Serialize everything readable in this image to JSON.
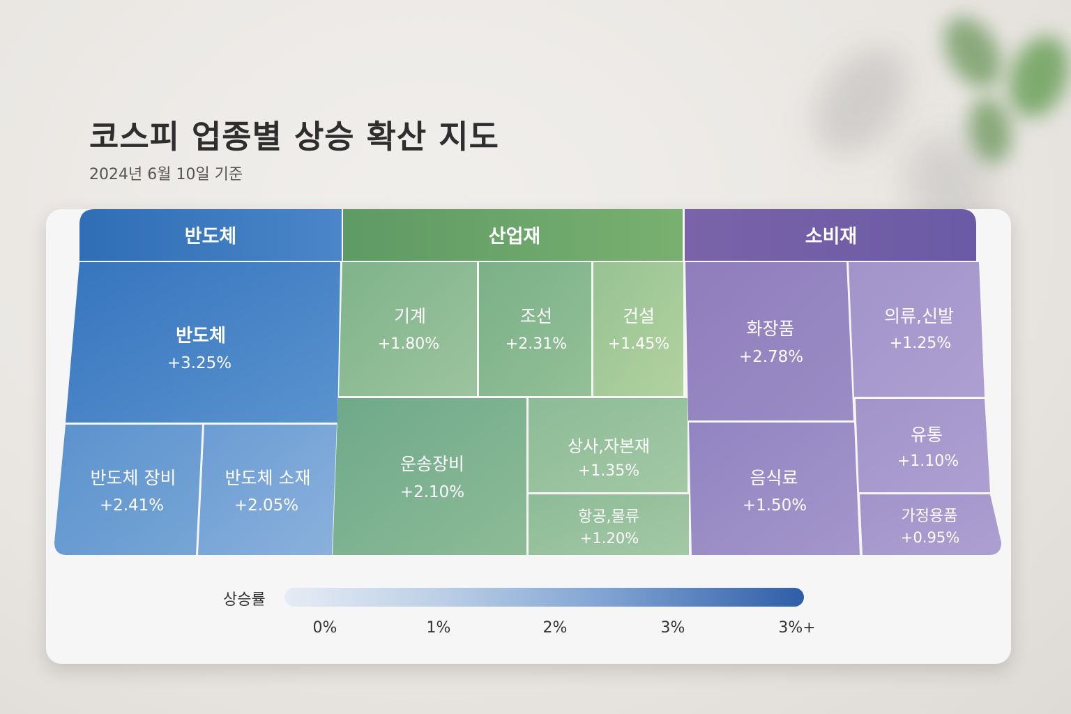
{
  "title": "코스피 업종별 상승 확산 지도",
  "subtitle": "2024년 6월 10일 기준",
  "chart_data": {
    "type": "treemap",
    "groups": [
      {
        "name": "반도체",
        "color": "#3a78bf",
        "items": [
          {
            "name": "반도체",
            "value": "+3.25%",
            "change": 3.25
          },
          {
            "name": "반도체 장비",
            "value": "+2.41%",
            "change": 2.41
          },
          {
            "name": "반도체 소재",
            "value": "+2.05%",
            "change": 2.05
          }
        ]
      },
      {
        "name": "산업재",
        "color": "#67a66c",
        "items": [
          {
            "name": "기계",
            "value": "+1.80%",
            "change": 1.8
          },
          {
            "name": "조선",
            "value": "+2.31%",
            "change": 2.31
          },
          {
            "name": "건설",
            "value": "+1.45%",
            "change": 1.45
          },
          {
            "name": "운송장비",
            "value": "+2.10%",
            "change": 2.1
          },
          {
            "name": "상사,자본재",
            "value": "+1.35%",
            "change": 1.35
          },
          {
            "name": "항공,물류",
            "value": "+1.20%",
            "change": 1.2
          }
        ]
      },
      {
        "name": "소비재",
        "color": "#7f69ad",
        "items": [
          {
            "name": "화장품",
            "value": "+2.78%",
            "change": 2.78
          },
          {
            "name": "의류,신발",
            "value": "+1.25%",
            "change": 1.25
          },
          {
            "name": "유통",
            "value": "+1.10%",
            "change": 1.1
          },
          {
            "name": "음식료",
            "value": "+1.50%",
            "change": 1.5
          },
          {
            "name": "가정용품",
            "value": "+0.95%",
            "change": 0.95
          }
        ]
      }
    ],
    "legend": {
      "label": "상승률",
      "ticks": [
        "0%",
        "1%",
        "2%",
        "3%",
        "3%+"
      ]
    }
  }
}
